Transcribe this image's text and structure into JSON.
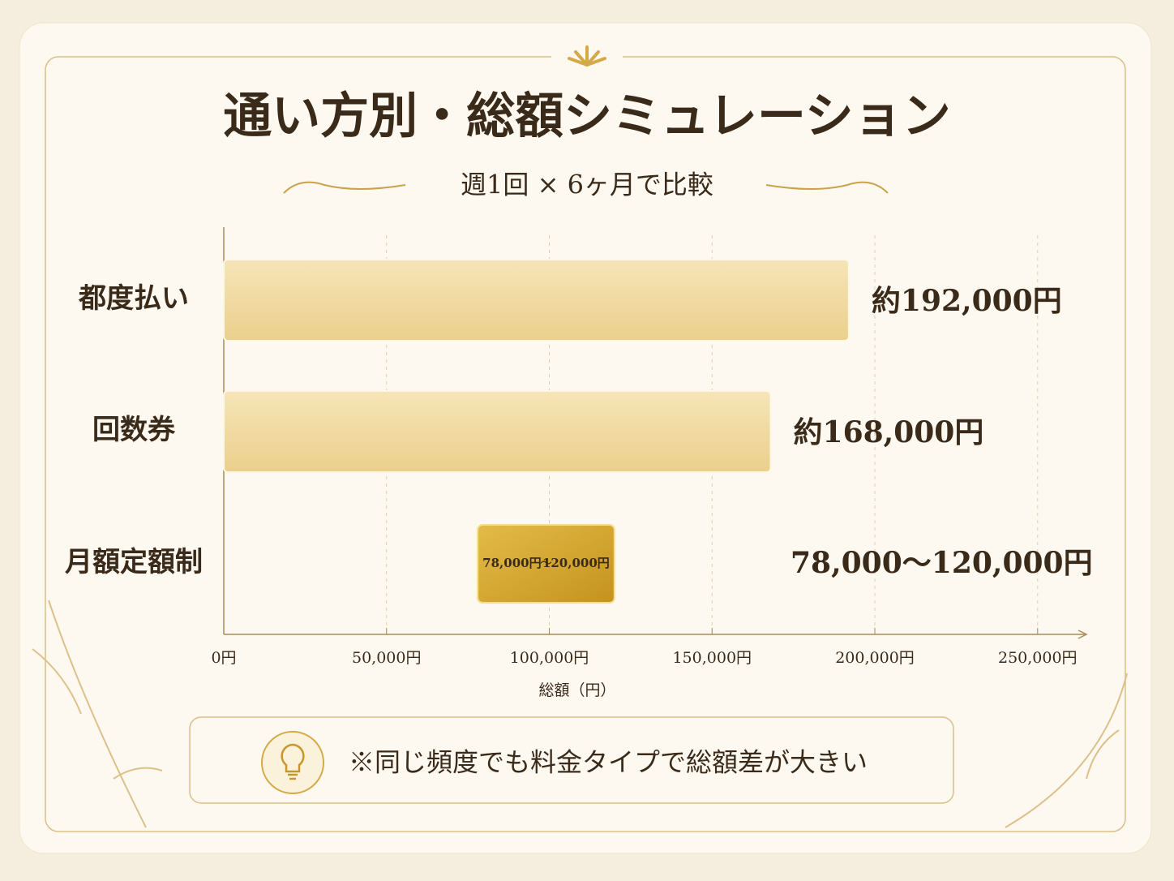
{
  "chart_data": {
    "type": "range-bar",
    "title": "通い方別・総額シミュレーション",
    "subtitle": "週1回 × 6ヶ月で比較",
    "categories": [
      "都度払い",
      "回数券",
      "月額定額制"
    ],
    "low": [
      null,
      null,
      78000
    ],
    "high": [
      192000,
      168000,
      120000
    ],
    "value_labels": [
      "約192,000円",
      "約168,000円",
      "78,000～120,000円"
    ],
    "range_bar_labels": [
      "78,000円",
      "～",
      "120,000円"
    ],
    "xlabel": "総額（円）",
    "xlim": [
      0,
      265000
    ],
    "xticks": [
      {
        "value": 0,
        "label": "0円"
      },
      {
        "value": 50000,
        "label": "50,000円"
      },
      {
        "value": 100000,
        "label": "100,000円"
      },
      {
        "value": 150000,
        "label": "150,000円"
      },
      {
        "value": 200000,
        "label": "200,000円"
      },
      {
        "value": 250000,
        "label": "250,000円"
      }
    ],
    "grid": true,
    "colors": [
      "#f1dca6",
      "#f1dca6",
      "#d4a52c"
    ],
    "note": "※同じ頻度でも料金タイプで総額差が大きい"
  }
}
